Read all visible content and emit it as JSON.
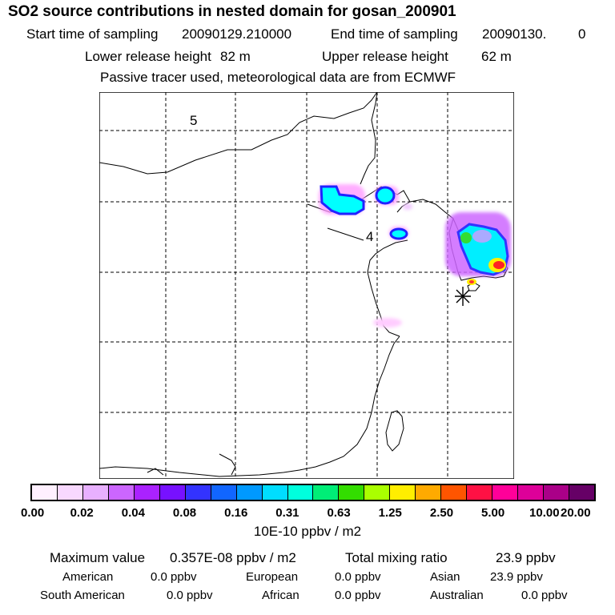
{
  "title": "SO2 source contributions in nested domain for gosan_200901",
  "header": {
    "start_label": "Start time of sampling",
    "start_value": "20090129.210000",
    "end_label": "End time of sampling",
    "end_value": "20090130.",
    "end_value_suffix": "0",
    "lower_label": "Lower release height",
    "lower_value": "82 m",
    "upper_label": "Upper release height",
    "upper_value": "62 m",
    "note": "Passive tracer used, meteorological data are from ECMWF"
  },
  "map": {
    "grid_labels": [
      "5",
      "4"
    ],
    "colors": {
      "cyan": "#00ffff",
      "blue": "#1a1aff",
      "magenta": "#cc00ff",
      "green": "#22cc44",
      "yellow": "#ffee00",
      "red": "#ff1111",
      "pink": "#ff33cc"
    }
  },
  "colorbar": {
    "colors": [
      "#fff0ff",
      "#f8d8ff",
      "#e8b0ff",
      "#cc66ff",
      "#aa22ff",
      "#7711ff",
      "#3333ff",
      "#1166ff",
      "#0099ff",
      "#00ddff",
      "#00ffdd",
      "#00ee77",
      "#33dd00",
      "#aaff00",
      "#ffee00",
      "#ffaa00",
      "#ff5500",
      "#ff1144",
      "#ff0099",
      "#dd0099",
      "#aa0088",
      "#660066"
    ],
    "ticks": [
      "0.00",
      "0.02",
      "0.04",
      "0.08",
      "0.16",
      "0.31",
      "0.63",
      "1.25",
      "2.50",
      "5.00",
      "10.00",
      "20.00"
    ],
    "unit": "10E-10 ppbv / m2"
  },
  "footer": {
    "max_label": "Maximum value",
    "max_value": "0.357E-08 ppbv / m2",
    "total_label": "Total mixing ratio",
    "total_value": "23.9 ppbv",
    "regions": [
      {
        "name": "American",
        "value": "0.0 ppbv"
      },
      {
        "name": "European",
        "value": "0.0 ppbv"
      },
      {
        "name": "Asian",
        "value": "23.9 ppbv"
      },
      {
        "name": "South American",
        "value": "0.0 ppbv"
      },
      {
        "name": "African",
        "value": "0.0 ppbv"
      },
      {
        "name": "Australian",
        "value": "0.0 ppbv"
      }
    ]
  }
}
